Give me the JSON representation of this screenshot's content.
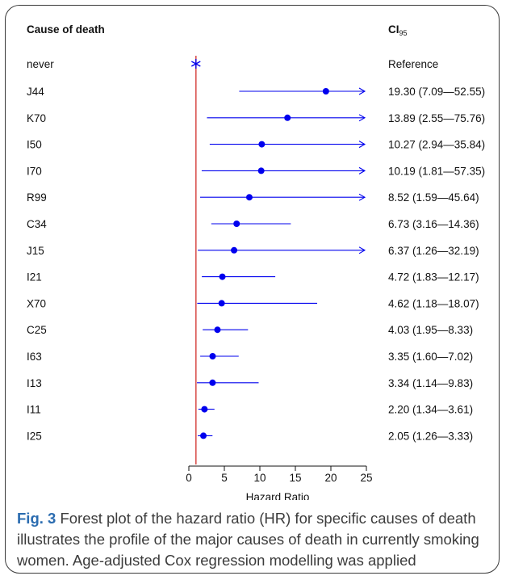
{
  "chart_data": {
    "type": "forest",
    "header": {
      "left": "Cause of death",
      "right_main": "CI",
      "right_sub": "95"
    },
    "xlabel": "Hazard Ratio",
    "xlim": [
      0,
      25
    ],
    "xticks": [
      0,
      5,
      10,
      15,
      20,
      25
    ],
    "reference_line": 1,
    "reference_row": {
      "label": "never",
      "text": "Reference",
      "value": 1
    },
    "rows": [
      {
        "label": "J44",
        "hr": 19.3,
        "lo": 7.09,
        "hi": 52.55,
        "text": "19.30 (7.09—52.55)"
      },
      {
        "label": "K70",
        "hr": 13.89,
        "lo": 2.55,
        "hi": 75.76,
        "text": "13.89 (2.55—75.76)"
      },
      {
        "label": "I50",
        "hr": 10.27,
        "lo": 2.94,
        "hi": 35.84,
        "text": "10.27 (2.94—35.84)"
      },
      {
        "label": "I70",
        "hr": 10.19,
        "lo": 1.81,
        "hi": 57.35,
        "text": "10.19 (1.81—57.35)"
      },
      {
        "label": "R99",
        "hr": 8.52,
        "lo": 1.59,
        "hi": 45.64,
        "text": "8.52 (1.59—45.64)"
      },
      {
        "label": "C34",
        "hr": 6.73,
        "lo": 3.16,
        "hi": 14.36,
        "text": "6.73 (3.16—14.36)"
      },
      {
        "label": "J15",
        "hr": 6.37,
        "lo": 1.26,
        "hi": 32.19,
        "text": "6.37 (1.26—32.19)"
      },
      {
        "label": "I21",
        "hr": 4.72,
        "lo": 1.83,
        "hi": 12.17,
        "text": "4.72 (1.83—12.17)"
      },
      {
        "label": "X70",
        "hr": 4.62,
        "lo": 1.18,
        "hi": 18.07,
        "text": "4.62 (1.18—18.07)"
      },
      {
        "label": "C25",
        "hr": 4.03,
        "lo": 1.95,
        "hi": 8.33,
        "text": "4.03 (1.95—8.33)"
      },
      {
        "label": "I63",
        "hr": 3.35,
        "lo": 1.6,
        "hi": 7.02,
        "text": "3.35 (1.60—7.02)"
      },
      {
        "label": "I13",
        "hr": 3.34,
        "lo": 1.14,
        "hi": 9.83,
        "text": "3.34 (1.14—9.83)"
      },
      {
        "label": "I11",
        "hr": 2.2,
        "lo": 1.34,
        "hi": 3.61,
        "text": "2.20 (1.34—3.61)"
      },
      {
        "label": "I25",
        "hr": 2.05,
        "lo": 1.26,
        "hi": 3.33,
        "text": "2.05 (1.26—3.33)"
      }
    ],
    "colors": {
      "marker": "#0000ee",
      "reference_line": "#d9534f",
      "text": "#111111"
    }
  },
  "caption": {
    "label": "Fig. 3",
    "text": "Forest plot of the hazard ratio (HR) for specific causes of death illustrates the profile of the major causes of death in currently smoking women. Age-adjusted Cox regression modelling was applied"
  }
}
